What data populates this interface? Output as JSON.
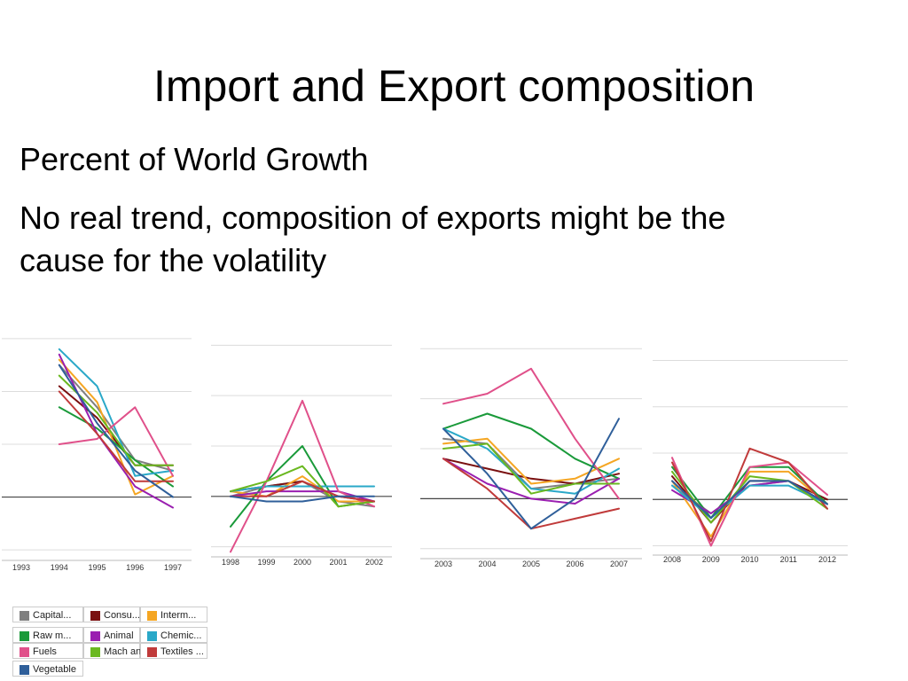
{
  "slide": {
    "title": "Import and Export composition",
    "bullets": [
      "Percent of World Growth",
      "No real trend, composition of exports might be the cause for the volatility"
    ]
  },
  "legend": [
    {
      "label": "Capital...",
      "color": "#808080"
    },
    {
      "label": "Consu...",
      "color": "#7a1010"
    },
    {
      "label": "Interm...",
      "color": "#f5a623"
    },
    {
      "label": "Raw m...",
      "color": "#1a9a3a"
    },
    {
      "label": "Animal",
      "color": "#9a1fb0"
    },
    {
      "label": "Chemic...",
      "color": "#2aa8c8"
    },
    {
      "label": "Fuels",
      "color": "#e0508a"
    },
    {
      "label": "Mach an...",
      "color": "#6ab820"
    },
    {
      "label": "Textiles ...",
      "color": "#c03a3a"
    },
    {
      "label": "Vegetable",
      "color": "#2f5f9a"
    }
  ],
  "chart_data": [
    {
      "type": "line",
      "x": [
        "1993",
        "1994",
        "1995",
        "1996",
        "1997"
      ],
      "ylim": [
        -1.2,
        3.2
      ],
      "grid": true,
      "series": [
        {
          "name": "Capital...",
          "values": [
            null,
            2.5,
            1.7,
            0.7,
            0.5
          ]
        },
        {
          "name": "Consu...",
          "values": [
            null,
            2.1,
            1.5,
            0.6,
            0.6
          ]
        },
        {
          "name": "Interm...",
          "values": [
            null,
            2.6,
            1.8,
            0.05,
            0.4
          ]
        },
        {
          "name": "Raw m...",
          "values": [
            null,
            1.7,
            1.3,
            0.7,
            0.2
          ]
        },
        {
          "name": "Animal",
          "values": [
            null,
            2.7,
            1.2,
            0.2,
            -0.2
          ]
        },
        {
          "name": "Chemic...",
          "values": [
            null,
            2.8,
            2.1,
            0.4,
            0.5
          ]
        },
        {
          "name": "Fuels",
          "values": [
            null,
            1.0,
            1.1,
            1.7,
            0.4
          ]
        },
        {
          "name": "Mach an...",
          "values": [
            null,
            2.3,
            1.6,
            0.6,
            0.6
          ]
        },
        {
          "name": "Textiles ...",
          "values": [
            null,
            2.0,
            1.2,
            0.3,
            0.3
          ]
        },
        {
          "name": "Vegetable",
          "values": [
            null,
            2.5,
            1.4,
            0.5,
            0.0
          ]
        }
      ]
    },
    {
      "type": "line",
      "x": [
        "1998",
        "1999",
        "2000",
        "2001",
        "2002"
      ],
      "ylim": [
        -1.2,
        3.2
      ],
      "grid": true,
      "series": [
        {
          "name": "Capital...",
          "values": [
            0.0,
            0.2,
            0.3,
            -0.1,
            -0.2
          ]
        },
        {
          "name": "Consu...",
          "values": [
            0.1,
            0.2,
            0.3,
            0.0,
            -0.1
          ]
        },
        {
          "name": "Interm...",
          "values": [
            0.1,
            0.0,
            0.4,
            -0.1,
            -0.1
          ]
        },
        {
          "name": "Raw m...",
          "values": [
            -0.6,
            0.3,
            1.0,
            -0.2,
            -0.1
          ]
        },
        {
          "name": "Animal",
          "values": [
            0.0,
            0.1,
            0.1,
            0.1,
            -0.1
          ]
        },
        {
          "name": "Chemic...",
          "values": [
            0.1,
            0.2,
            0.2,
            0.2,
            0.2
          ]
        },
        {
          "name": "Fuels",
          "values": [
            -1.1,
            0.3,
            1.9,
            0.1,
            -0.2
          ]
        },
        {
          "name": "Mach an...",
          "values": [
            0.1,
            0.3,
            0.6,
            -0.2,
            -0.1
          ]
        },
        {
          "name": "Textiles ...",
          "values": [
            0.0,
            0.0,
            0.3,
            0.0,
            -0.1
          ]
        },
        {
          "name": "Vegetable",
          "values": [
            0.0,
            -0.1,
            -0.1,
            0.0,
            0.0
          ]
        }
      ]
    },
    {
      "type": "line",
      "x": [
        "2003",
        "2004",
        "2005",
        "2006",
        "2007"
      ],
      "ylim": [
        -1.2,
        3.2
      ],
      "grid": true,
      "series": [
        {
          "name": "Capital...",
          "values": [
            1.2,
            1.1,
            0.2,
            0.3,
            0.4
          ]
        },
        {
          "name": "Consu...",
          "values": [
            0.8,
            0.6,
            0.4,
            0.3,
            0.5
          ]
        },
        {
          "name": "Interm...",
          "values": [
            1.1,
            1.2,
            0.3,
            0.4,
            0.8
          ]
        },
        {
          "name": "Raw m...",
          "values": [
            1.4,
            1.7,
            1.4,
            0.8,
            0.4
          ]
        },
        {
          "name": "Animal",
          "values": [
            0.8,
            0.3,
            0.0,
            -0.1,
            0.4
          ]
        },
        {
          "name": "Chemic...",
          "values": [
            1.4,
            1.0,
            0.2,
            0.1,
            0.6
          ]
        },
        {
          "name": "Fuels",
          "values": [
            1.9,
            2.1,
            2.6,
            1.2,
            0.0
          ]
        },
        {
          "name": "Mach an...",
          "values": [
            1.0,
            1.1,
            0.1,
            0.3,
            0.3
          ]
        },
        {
          "name": "Textiles ...",
          "values": [
            0.8,
            0.2,
            -0.6,
            -0.4,
            -0.2
          ]
        },
        {
          "name": "Vegetable",
          "values": [
            1.4,
            0.5,
            -0.6,
            0.0,
            1.6
          ]
        }
      ]
    },
    {
      "type": "line",
      "x": [
        "2008",
        "2009",
        "2010",
        "2011",
        "2012"
      ],
      "ylim": [
        -1.2,
        3.2
      ],
      "grid": true,
      "series": [
        {
          "name": "Capital...",
          "values": [
            0.3,
            -0.3,
            0.3,
            0.4,
            -0.1
          ]
        },
        {
          "name": "Consu...",
          "values": [
            0.5,
            -0.5,
            0.4,
            0.4,
            0.0
          ]
        },
        {
          "name": "Interm...",
          "values": [
            0.4,
            -0.8,
            0.6,
            0.6,
            -0.1
          ]
        },
        {
          "name": "Raw m...",
          "values": [
            0.7,
            -0.4,
            0.7,
            0.7,
            -0.1
          ]
        },
        {
          "name": "Animal",
          "values": [
            0.2,
            -0.3,
            0.3,
            0.4,
            -0.1
          ]
        },
        {
          "name": "Chemic...",
          "values": [
            0.3,
            -0.4,
            0.3,
            0.3,
            -0.1
          ]
        },
        {
          "name": "Fuels",
          "values": [
            0.9,
            -1.0,
            0.7,
            0.8,
            0.1
          ]
        },
        {
          "name": "Mach an...",
          "values": [
            0.6,
            -0.5,
            0.5,
            0.4,
            -0.2
          ]
        },
        {
          "name": "Textiles ...",
          "values": [
            0.8,
            -0.9,
            1.1,
            0.8,
            -0.2
          ]
        },
        {
          "name": "Vegetable",
          "values": [
            0.4,
            -0.4,
            0.4,
            0.4,
            -0.1
          ]
        }
      ]
    }
  ]
}
